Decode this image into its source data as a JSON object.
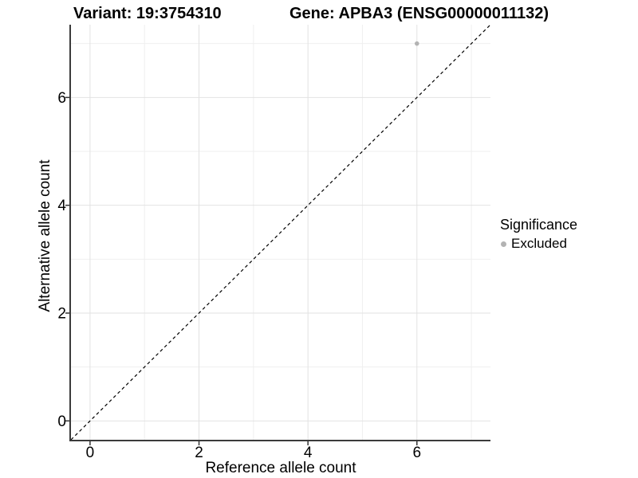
{
  "titles": {
    "left": "Variant: 19:3754310",
    "right": "Gene: APBA3 (ENSG00000011132)"
  },
  "chart_data": {
    "type": "scatter",
    "xlabel": "Reference allele count",
    "ylabel": "Alternative allele count",
    "xlim": [
      -0.35,
      7.35
    ],
    "ylim": [
      -0.35,
      7.35
    ],
    "xticks": [
      0,
      2,
      4,
      6
    ],
    "yticks": [
      0,
      2,
      4,
      6
    ],
    "minor_gridlines_x": [
      1,
      3,
      5,
      7
    ],
    "minor_gridlines_y": [
      1,
      3,
      5,
      7
    ],
    "grid": true,
    "points": [
      {
        "x": 6,
        "y": 7,
        "series": "Excluded"
      }
    ],
    "reference_line": {
      "slope": 1,
      "intercept": 0,
      "style": "dashed",
      "color": "#000000"
    },
    "legend": {
      "title": "Significance",
      "position": "right",
      "entries": [
        {
          "label": "Excluded",
          "color": "#b3b3b3",
          "marker": "circle"
        }
      ]
    },
    "colors": {
      "point": "#b3b3b3",
      "grid_major": "#e2e2e2",
      "grid_minor": "#efefef",
      "axis_line": "#3b3b3b",
      "tick_mark": "#333333",
      "text": "#000000"
    }
  }
}
